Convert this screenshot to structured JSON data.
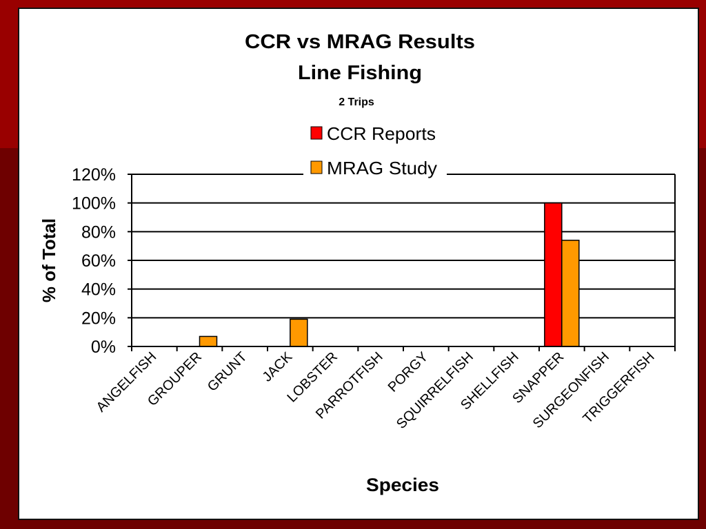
{
  "colors": {
    "background_top": "#990000",
    "background_bottom": "#6e0000",
    "panel": "#ffffff",
    "ccr": "#ff0000",
    "mrag": "#ff9900"
  },
  "chart_data": {
    "type": "bar",
    "title": "CCR vs MRAG Results",
    "subtitle": "Line Fishing",
    "subtitle2": "2 Trips",
    "xlabel": "Species",
    "ylabel": "% of Total",
    "ylim": [
      0,
      120
    ],
    "yticks": [
      "0%",
      "20%",
      "40%",
      "60%",
      "80%",
      "100%",
      "120%"
    ],
    "ytick_values": [
      0,
      20,
      40,
      60,
      80,
      100,
      120
    ],
    "grid": true,
    "legend_position": "top-center",
    "categories": [
      "ANGELFISH",
      "GROUPER",
      "GRUNT",
      "JACK",
      "LOBSTER",
      "PARROTFISH",
      "PORGY",
      "SQUIRRELFISH",
      "SHELLFISH",
      "SNAPPER",
      "SURGEONFISH",
      "TRIGGERFISH"
    ],
    "series": [
      {
        "name": "CCR Reports",
        "color": "#ff0000",
        "values": [
          0,
          0,
          0,
          0,
          0,
          0,
          0,
          0,
          0,
          100,
          0,
          0
        ]
      },
      {
        "name": "MRAG Study",
        "color": "#ff9900",
        "values": [
          0,
          7,
          0,
          19,
          0,
          0,
          0,
          0,
          0,
          74,
          0,
          0
        ]
      }
    ]
  }
}
